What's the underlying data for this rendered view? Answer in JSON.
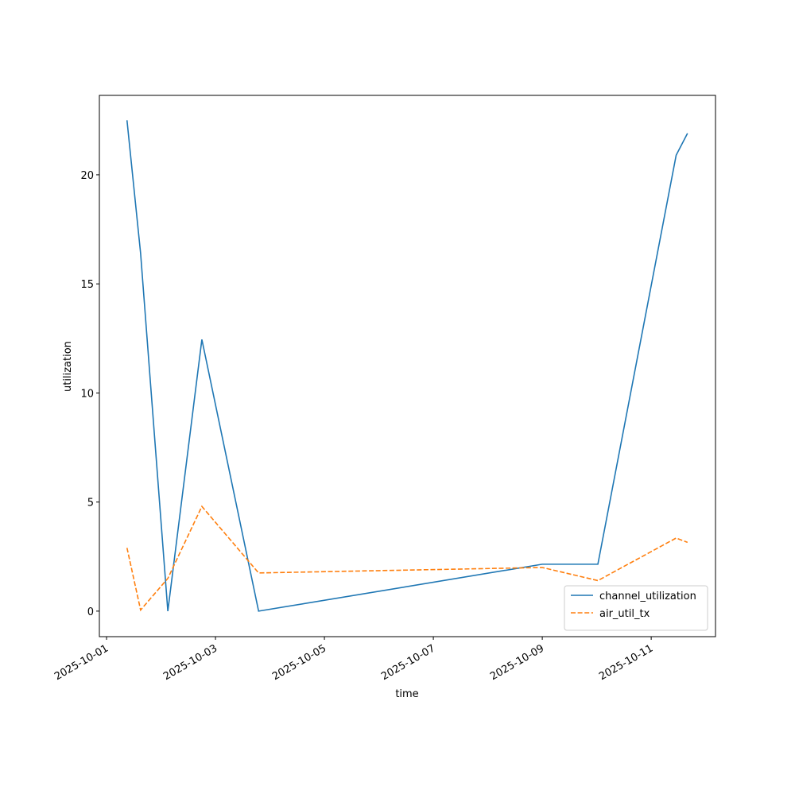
{
  "chart_data": {
    "type": "line",
    "x_label": "time",
    "y_label": "utilization",
    "x": [
      "2025-10-01T09:00",
      "2025-10-01T15:00",
      "2025-10-02T03:00",
      "2025-10-02T18:00",
      "2025-10-03T19:00",
      "2025-10-09T00:00",
      "2025-10-10T00:30",
      "2025-10-11T11:00",
      "2025-10-11T16:00"
    ],
    "series": [
      {
        "name": "channel_utilization",
        "color": "#1f77b4",
        "dash": false,
        "values": [
          22.5,
          16.4,
          0,
          12.45,
          0,
          2.15,
          2.15,
          20.9,
          21.9
        ]
      },
      {
        "name": "air_util_tx",
        "color": "#ff7f0e",
        "dash": true,
        "values": [
          2.9,
          0.05,
          1.5,
          4.8,
          1.75,
          2.0,
          1.4,
          3.35,
          3.15
        ]
      }
    ],
    "xlim": [
      "2025-09-30T20:50",
      "2025-10-12T04:20"
    ],
    "xticks": [
      "2025-10-01",
      "2025-10-03",
      "2025-10-05",
      "2025-10-07",
      "2025-10-09",
      "2025-10-11"
    ],
    "ylim": [
      -1.17,
      23.64
    ],
    "yticks": [
      0,
      5,
      10,
      15,
      20
    ],
    "grid": false,
    "legend": "lower right"
  }
}
